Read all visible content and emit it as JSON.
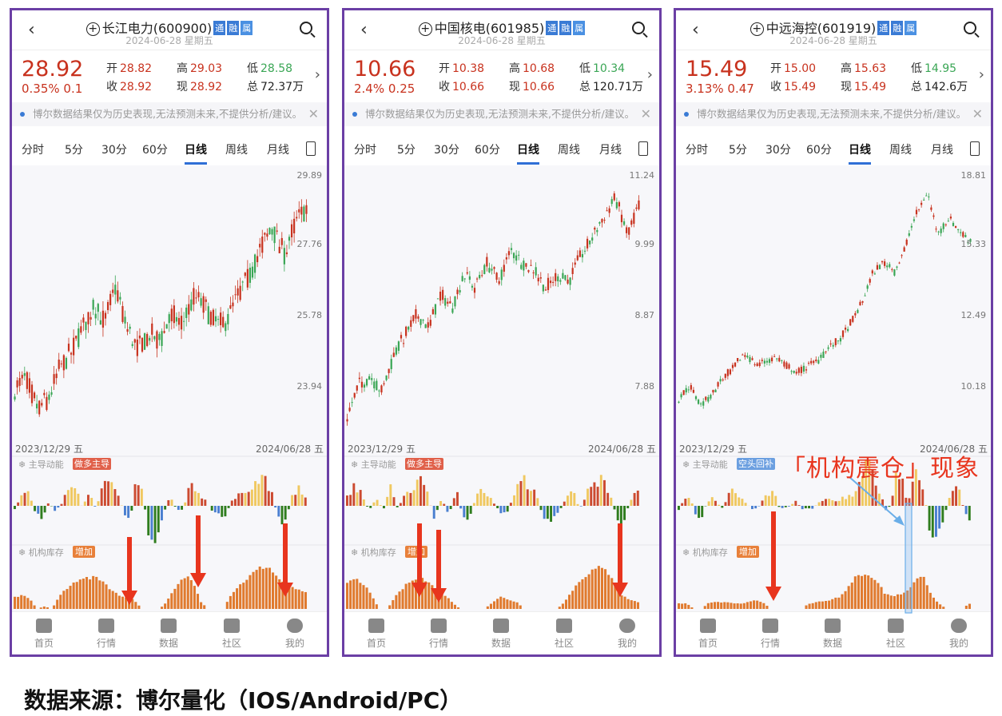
{
  "colors": {
    "up": "#c8321e",
    "down": "#3aa655",
    "accent": "#2f6fd6",
    "frame": "#6b3fa5",
    "arrow": "#e8351e"
  },
  "tabs": [
    "分时",
    "5分",
    "30分",
    "60分",
    "日线",
    "周线",
    "月线"
  ],
  "active_tab": "日线",
  "disclaimer": "博尔数据结果仅为历史表现,无法预测未来,不提供分析/建议。",
  "labels": {
    "open": "开",
    "close": "收",
    "high": "高",
    "now": "现",
    "low": "低",
    "total": "总",
    "ind1": "主导动能",
    "ind2": "机构库存"
  },
  "nav": [
    "首页",
    "行情",
    "数据",
    "社区",
    "我的"
  ],
  "tags": [
    "通",
    "融",
    "属"
  ],
  "panels": [
    {
      "name": "长江电力",
      "code": "(600900)",
      "date": "2024-06-28 星期五",
      "price": "28.92",
      "change": "0.35% 0.1",
      "open": "28.82",
      "close": "28.92",
      "high": "29.03",
      "now": "28.92",
      "low": "28.58",
      "total": "72.37万",
      "y_ticks": [
        "29.89",
        "27.76",
        "25.78",
        "23.94"
      ],
      "x_start": "2023/12/29 五",
      "x_end": "2024/06/28 五",
      "ind1_badge": "做多主导",
      "ind1_badge_color": "#e0604a",
      "ind2_badge": "增加",
      "price_path": [
        23.9,
        24.1,
        23.4,
        23.6,
        24.4,
        24.8,
        25.4,
        26.1,
        25.6,
        26.6,
        25.4,
        24.9,
        25.3,
        25.1,
        25.8,
        25.6,
        26.3,
        26.0,
        25.5,
        25.7,
        26.4,
        26.9,
        27.8,
        28.2,
        27.5,
        28.4,
        28.9
      ],
      "momentum": [
        -3,
        12,
        16,
        -6,
        -14,
        4,
        -6,
        3,
        20,
        24,
        -3,
        18,
        -4,
        22,
        28,
        15,
        -3,
        -20,
        32,
        12,
        -44,
        -34,
        -8,
        10,
        -5,
        -3,
        26,
        16,
        8,
        -4,
        -10,
        -14,
        4,
        10,
        18,
        22,
        27,
        32,
        14,
        -14,
        -18,
        10,
        20,
        8
      ],
      "inventory": [
        18,
        20,
        15,
        0,
        4,
        0,
        20,
        30,
        40,
        48,
        45,
        48,
        40,
        28,
        20,
        18,
        14,
        0,
        0,
        0,
        5,
        22,
        38,
        50,
        40,
        10,
        0,
        0,
        0,
        22,
        34,
        44,
        54,
        62,
        64,
        50,
        40,
        35,
        28,
        24
      ]
    },
    {
      "name": "中国核电",
      "code": "(601985)",
      "date": "2024-06-28 星期五",
      "price": "10.66",
      "change": "2.4% 0.25",
      "open": "10.38",
      "close": "10.66",
      "high": "10.68",
      "now": "10.66",
      "low": "10.34",
      "total": "120.71万",
      "y_ticks": [
        "11.24",
        "9.99",
        "8.87",
        "7.88"
      ],
      "x_start": "2023/12/29 五",
      "x_end": "2024/06/28 五",
      "ind1_badge": "做多主导",
      "ind1_badge_color": "#e0604a",
      "ind2_badge": "增加",
      "price_path": [
        7.5,
        7.9,
        8.0,
        7.8,
        8.3,
        8.6,
        8.9,
        8.7,
        9.2,
        9.0,
        9.5,
        9.3,
        9.7,
        9.4,
        9.9,
        9.7,
        9.6,
        9.3,
        9.5,
        9.4,
        9.8,
        10.1,
        10.5,
        10.8,
        10.2,
        10.66
      ],
      "momentum": [
        10,
        22,
        16,
        -6,
        8,
        -4,
        20,
        -4,
        18,
        12,
        30,
        14,
        -14,
        8,
        -10,
        18,
        -16,
        -12,
        20,
        14,
        6,
        -6,
        -10,
        14,
        34,
        22,
        12,
        -12,
        -18,
        -10,
        8,
        18,
        -4,
        14,
        24,
        30,
        16,
        -10,
        -22,
        8,
        14
      ],
      "inventory": [
        40,
        45,
        38,
        20,
        0,
        0,
        20,
        32,
        45,
        48,
        40,
        30,
        22,
        10,
        0,
        0,
        0,
        0,
        10,
        18,
        14,
        10,
        0,
        0,
        0,
        0,
        0,
        12,
        30,
        45,
        55,
        62,
        58,
        45,
        20,
        14,
        10
      ]
    },
    {
      "name": "中远海控",
      "code": "(601919)",
      "date": "2024-06-28 星期五",
      "price": "15.49",
      "change": "3.13% 0.47",
      "open": "15.00",
      "close": "15.49",
      "high": "15.63",
      "now": "15.49",
      "low": "14.95",
      "total": "142.6万",
      "y_ticks": [
        "18.81",
        "15.33",
        "12.49",
        "10.18"
      ],
      "x_start": "2023/12/29 五",
      "x_end": "2024/06/28 五",
      "ind1_badge": "空头回补",
      "ind1_badge_color": "#6b9fe0",
      "ind2_badge": "增加",
      "price_path": [
        9.8,
        10.2,
        9.6,
        9.9,
        10.4,
        10.7,
        11.2,
        10.9,
        10.9,
        11.1,
        10.8,
        10.6,
        10.8,
        11.0,
        11.4,
        11.7,
        12.3,
        13.0,
        14.2,
        14.6,
        14.2,
        15.3,
        16.8,
        17.9,
        15.8,
        16.6,
        16.0,
        15.49
      ],
      "momentum": [
        -5,
        8,
        10,
        -8,
        -16,
        4,
        8,
        2,
        -3,
        14,
        18,
        8,
        4,
        -3,
        -4,
        6,
        12,
        18,
        -3,
        -2,
        0,
        6,
        -4,
        -2,
        -3,
        4,
        8,
        6,
        4,
        8,
        10,
        12,
        20,
        40,
        44,
        30,
        16,
        -4,
        0,
        40,
        30,
        -3,
        38,
        30,
        10,
        -30,
        -36,
        -20,
        0,
        20,
        30,
        -6,
        -16
      ],
      "inventory": [
        8,
        8,
        0,
        0,
        10,
        10,
        10,
        9,
        8,
        10,
        14,
        10,
        0,
        0,
        0,
        0,
        0,
        8,
        10,
        12,
        14,
        18,
        30,
        48,
        52,
        48,
        40,
        22,
        20,
        22,
        30,
        45,
        50,
        20,
        8,
        0,
        0,
        0,
        8
      ]
    }
  ],
  "annotation": "「机构震仓」现象",
  "footer": "数据来源：博尔量化（IOS/Android/PC）"
}
